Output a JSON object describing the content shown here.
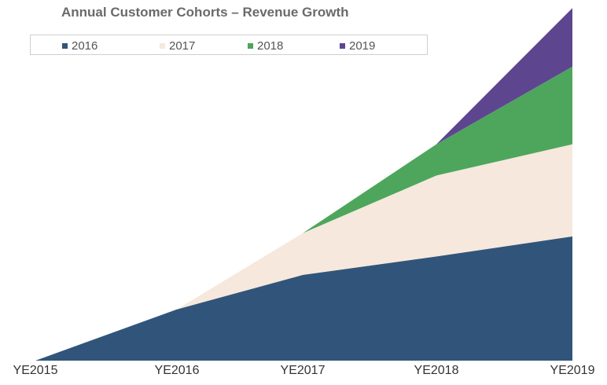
{
  "chart_data": {
    "type": "area",
    "stacked": true,
    "title": "Annual Customer Cohorts – Revenue Growth",
    "xlabel": "",
    "ylabel": "",
    "categories": [
      "YE2015",
      "YE2016",
      "YE2017",
      "YE2018",
      "YE2019"
    ],
    "series": [
      {
        "name": "2016",
        "color": "#31557a",
        "values": [
          0,
          64,
          107,
          130,
          155
        ]
      },
      {
        "name": "2017",
        "color": "#f6e8dc",
        "values": [
          0,
          0,
          52,
          101,
          115
        ]
      },
      {
        "name": "2018",
        "color": "#4da65c",
        "values": [
          0,
          0,
          0,
          39,
          97
        ]
      },
      {
        "name": "2019",
        "color": "#5e4590",
        "values": [
          0,
          0,
          0,
          0,
          73
        ]
      }
    ],
    "ylim": [
      0,
      450
    ],
    "grid": false,
    "legend": "top-left"
  }
}
